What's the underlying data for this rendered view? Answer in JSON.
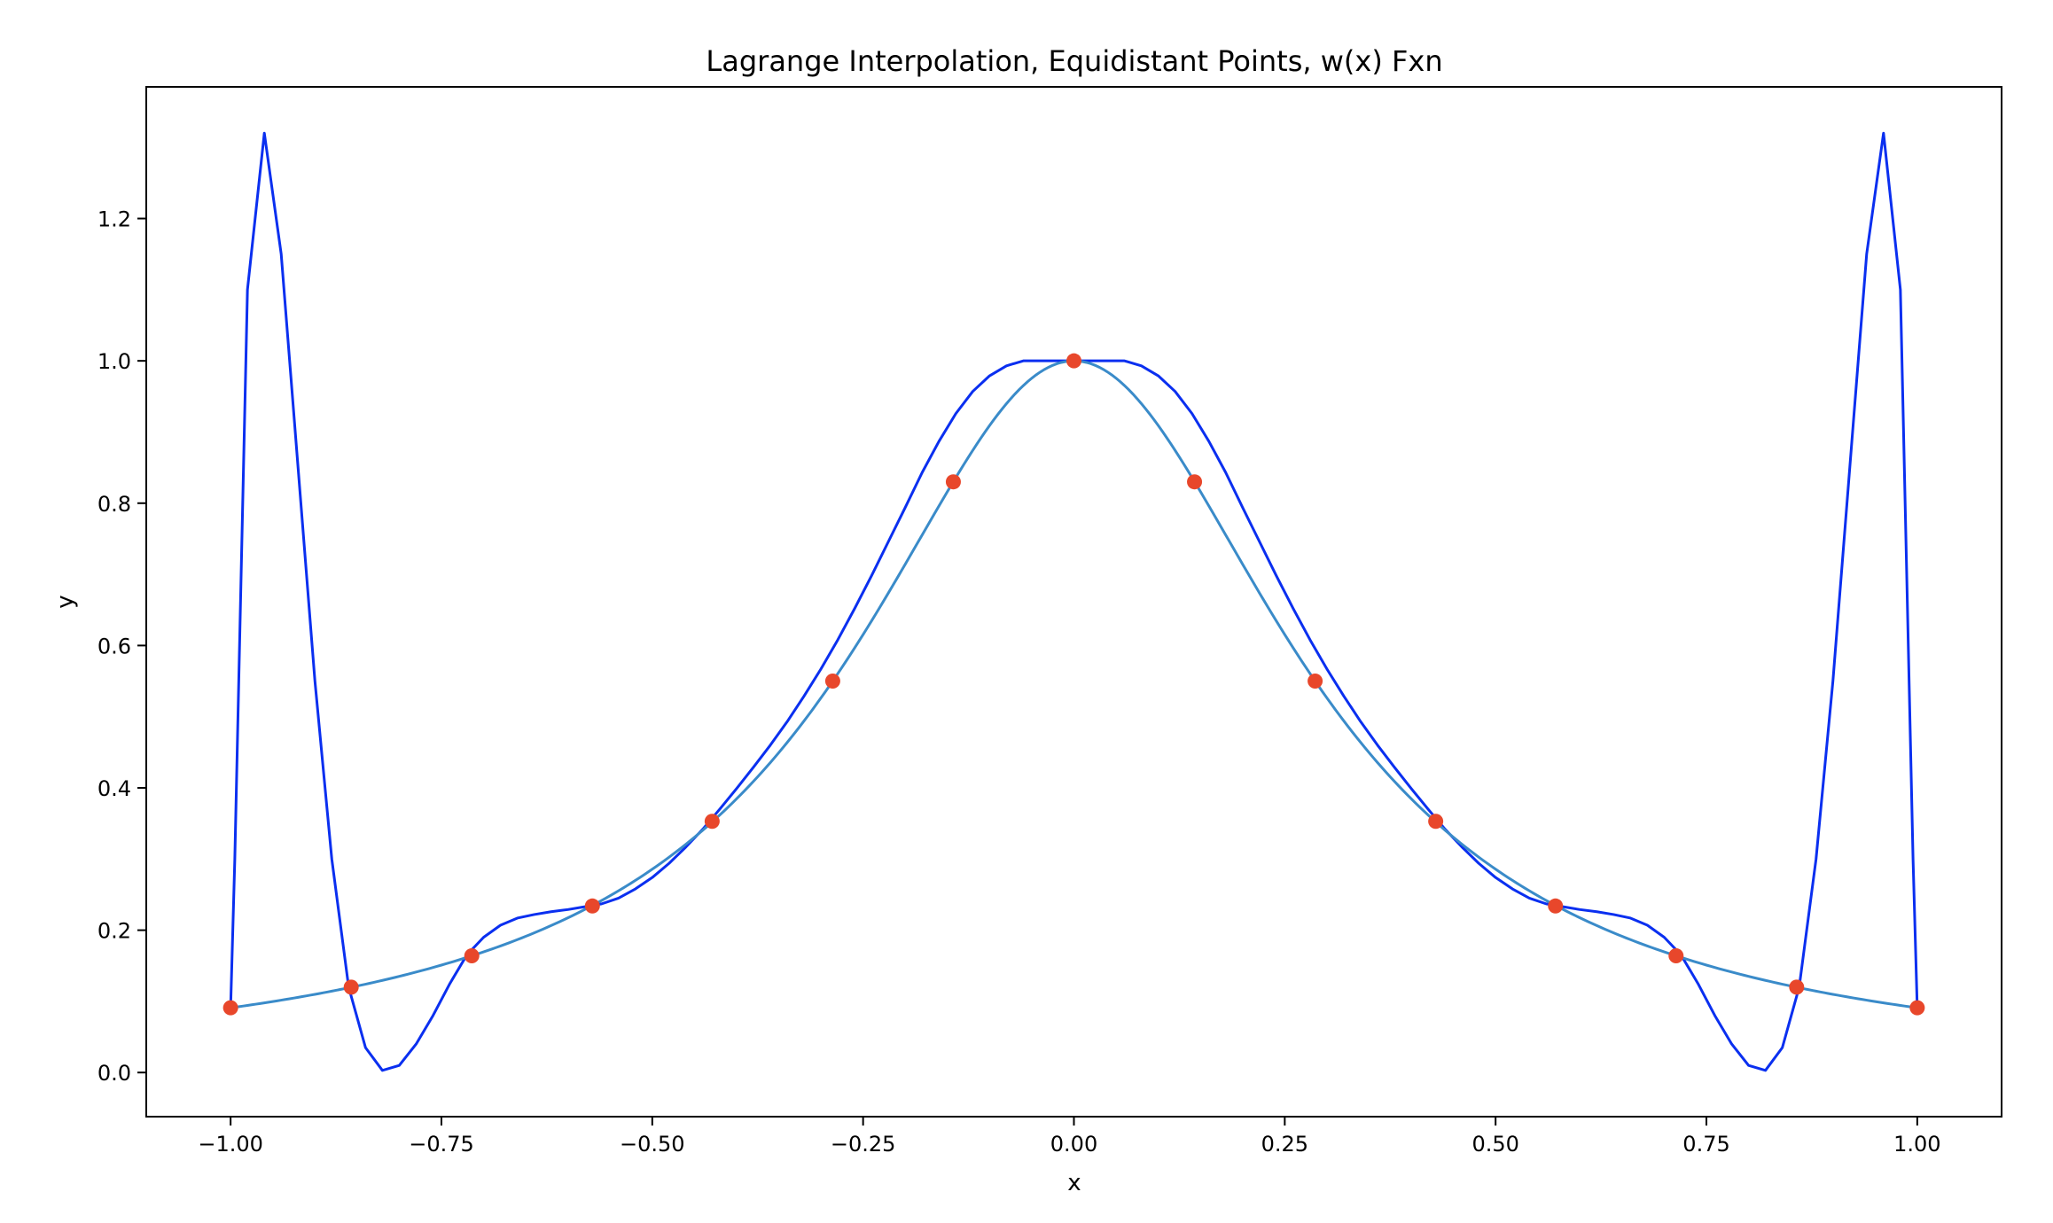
{
  "chart_data": {
    "type": "line",
    "title": "Lagrange Interpolation, Equidistant Points, w(x) Fxn",
    "xlabel": "x",
    "ylabel": "y",
    "xlim": [
      -1.1,
      1.1
    ],
    "ylim": [
      -0.062,
      1.385
    ],
    "x_ticks": [
      -1.0,
      -0.75,
      -0.5,
      -0.25,
      0.0,
      0.25,
      0.5,
      0.75,
      1.0
    ],
    "x_tick_labels": [
      "−1.00",
      "−0.75",
      "−0.50",
      "−0.25",
      "0.00",
      "0.25",
      "0.50",
      "0.75",
      "1.00"
    ],
    "y_ticks": [
      0.0,
      0.2,
      0.4,
      0.6,
      0.8,
      1.0,
      1.2
    ],
    "y_tick_labels": [
      "0.0",
      "0.2",
      "0.4",
      "0.6",
      "0.8",
      "1.0",
      "1.2"
    ],
    "grid": false,
    "legend": "none",
    "series": [
      {
        "kind": "line",
        "color": "#0a2ff0",
        "x": [
          -1.0,
          -0.995,
          -0.98,
          -0.96,
          -0.94,
          -0.92,
          -0.9,
          -0.88,
          -0.86,
          -0.84,
          -0.82,
          -0.8,
          -0.78,
          -0.76,
          -0.74,
          -0.72,
          -0.7,
          -0.68,
          -0.66,
          -0.64,
          -0.62,
          -0.6,
          -0.58,
          -0.56,
          -0.54,
          -0.52,
          -0.5,
          -0.48,
          -0.46,
          -0.44,
          -0.42,
          -0.4,
          -0.38,
          -0.36,
          -0.34,
          -0.32,
          -0.3,
          -0.28,
          -0.26,
          -0.24,
          -0.22,
          -0.2,
          -0.18,
          -0.16,
          -0.14,
          -0.12,
          -0.1,
          -0.08,
          -0.06,
          -0.04,
          -0.02,
          0.0,
          0.02,
          0.04,
          0.06,
          0.08,
          0.1,
          0.12,
          0.14,
          0.16,
          0.18,
          0.2,
          0.22,
          0.24,
          0.26,
          0.28,
          0.3,
          0.32,
          0.34,
          0.36,
          0.38,
          0.4,
          0.42,
          0.44,
          0.46,
          0.48,
          0.5,
          0.52,
          0.54,
          0.56,
          0.58,
          0.6,
          0.62,
          0.64,
          0.66,
          0.68,
          0.7,
          0.72,
          0.74,
          0.76,
          0.78,
          0.8,
          0.82,
          0.84,
          0.86,
          0.88,
          0.9,
          0.92,
          0.94,
          0.96,
          0.98,
          0.995,
          1.0
        ],
        "y": [
          0.09,
          0.3,
          1.1,
          1.32,
          1.15,
          0.85,
          0.55,
          0.3,
          0.12,
          0.035,
          0.003,
          0.01,
          0.04,
          0.08,
          0.125,
          0.165,
          0.19,
          0.207,
          0.217,
          0.222,
          0.226,
          0.229,
          0.233,
          0.237,
          0.245,
          0.258,
          0.274,
          0.294,
          0.317,
          0.342,
          0.37,
          0.399,
          0.429,
          0.46,
          0.493,
          0.529,
          0.567,
          0.608,
          0.652,
          0.698,
          0.746,
          0.794,
          0.843,
          0.887,
          0.926,
          0.957,
          0.979,
          0.993,
          1.0,
          1.0,
          1.0,
          1.0,
          1.0,
          1.0,
          1.0,
          0.993,
          0.979,
          0.957,
          0.926,
          0.887,
          0.843,
          0.794,
          0.746,
          0.698,
          0.652,
          0.608,
          0.567,
          0.529,
          0.493,
          0.46,
          0.429,
          0.399,
          0.37,
          0.342,
          0.317,
          0.294,
          0.274,
          0.258,
          0.245,
          0.237,
          0.233,
          0.229,
          0.226,
          0.222,
          0.217,
          0.207,
          0.19,
          0.165,
          0.125,
          0.08,
          0.04,
          0.01,
          0.003,
          0.035,
          0.12,
          0.3,
          0.55,
          0.85,
          1.15,
          1.32,
          1.1,
          0.3,
          0.09
        ]
      },
      {
        "kind": "line",
        "color": "#3a8bc9",
        "function": "1/(1+10x^2)",
        "x_range": [
          -1.0,
          1.0
        ]
      },
      {
        "kind": "scatter",
        "color": "#e8472b",
        "x": [
          -1.0,
          -0.857,
          -0.714,
          -0.571,
          -0.429,
          -0.286,
          -0.143,
          0.0,
          0.143,
          0.286,
          0.429,
          0.571,
          0.714,
          0.857,
          1.0
        ],
        "y": [
          0.091,
          0.12,
          0.164,
          0.234,
          0.353,
          0.55,
          0.83,
          1.0,
          0.83,
          0.55,
          0.353,
          0.234,
          0.164,
          0.12,
          0.091
        ]
      }
    ]
  }
}
